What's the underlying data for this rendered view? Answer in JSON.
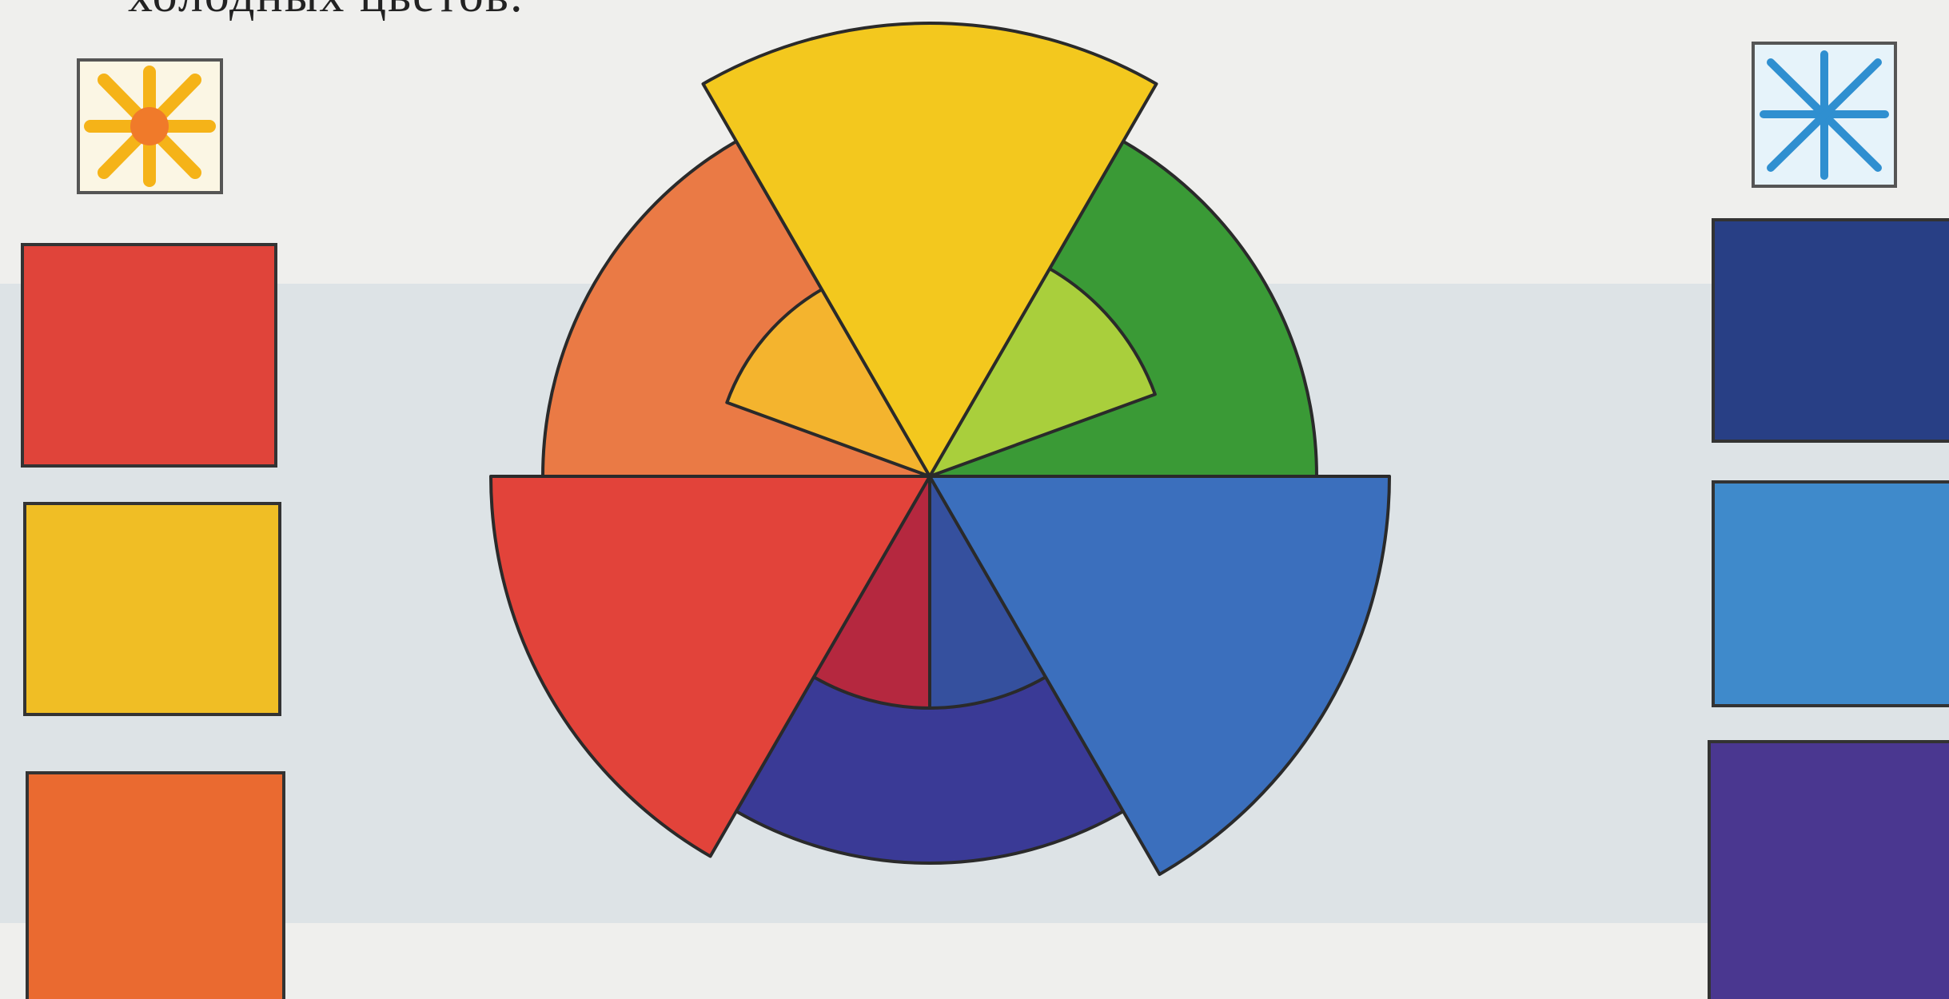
{
  "caption": "холодных цветов."
}
